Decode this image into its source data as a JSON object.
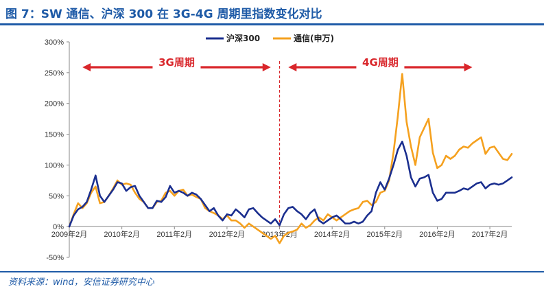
{
  "header": {
    "title": "图 7：SW 通信、沪深 300 在 3G-4G 周期里指数变化对比"
  },
  "footer": {
    "source": "资料来源：wind，安信证券研究中心"
  },
  "colors": {
    "hs300": "#1b2f8f",
    "telecom": "#f5a11f",
    "annotation": "#d9262b",
    "accent": "#1f5ba7"
  },
  "annotations": {
    "period_3g": "3G周期",
    "period_4g": "4G周期"
  },
  "chart_data": {
    "type": "line",
    "title": "",
    "xlabel": "",
    "ylabel": "",
    "ylim": [
      -50,
      300
    ],
    "yticks": [
      "-50%",
      "0%",
      "50%",
      "100%",
      "150%",
      "200%",
      "250%",
      "300%"
    ],
    "xticks": [
      "2009年2月",
      "2010年2月",
      "2011年2月",
      "2012年2月",
      "2013年2月",
      "2014年2月",
      "2015年2月",
      "2016年2月",
      "2017年2月"
    ],
    "x_range": [
      "2009-02",
      "2017-07"
    ],
    "grid": false,
    "legend_position": "top-center",
    "annotations": [
      {
        "label": "3G周期",
        "from": "2009-05",
        "to": "2012-12"
      },
      {
        "label": "4G周期",
        "from": "2013-04",
        "to": "2016-10"
      }
    ],
    "divider_at": "2013-02",
    "series": [
      {
        "name": "沪深300",
        "color": "#1b2f8f",
        "points": [
          [
            "2009-02",
            0
          ],
          [
            "2009-03",
            18
          ],
          [
            "2009-04",
            28
          ],
          [
            "2009-05",
            32
          ],
          [
            "2009-06",
            40
          ],
          [
            "2009-07",
            60
          ],
          [
            "2009-08",
            83
          ],
          [
            "2009-09",
            50
          ],
          [
            "2009-10",
            40
          ],
          [
            "2009-11",
            50
          ],
          [
            "2009-12",
            60
          ],
          [
            "2010-01",
            72
          ],
          [
            "2010-02",
            70
          ],
          [
            "2010-03",
            58
          ],
          [
            "2010-04",
            64
          ],
          [
            "2010-05",
            66
          ],
          [
            "2010-06",
            50
          ],
          [
            "2010-07",
            40
          ],
          [
            "2010-08",
            30
          ],
          [
            "2010-09",
            30
          ],
          [
            "2010-10",
            42
          ],
          [
            "2010-11",
            40
          ],
          [
            "2010-12",
            48
          ],
          [
            "2011-01",
            66
          ],
          [
            "2011-02",
            55
          ],
          [
            "2011-03",
            58
          ],
          [
            "2011-04",
            55
          ],
          [
            "2011-05",
            50
          ],
          [
            "2011-06",
            55
          ],
          [
            "2011-07",
            52
          ],
          [
            "2011-08",
            45
          ],
          [
            "2011-09",
            35
          ],
          [
            "2011-10",
            25
          ],
          [
            "2011-11",
            30
          ],
          [
            "2011-12",
            18
          ],
          [
            "2012-01",
            10
          ],
          [
            "2012-02",
            20
          ],
          [
            "2012-03",
            18
          ],
          [
            "2012-04",
            28
          ],
          [
            "2012-05",
            22
          ],
          [
            "2012-06",
            15
          ],
          [
            "2012-07",
            28
          ],
          [
            "2012-08",
            30
          ],
          [
            "2012-09",
            22
          ],
          [
            "2012-10",
            15
          ],
          [
            "2012-11",
            10
          ],
          [
            "2012-12",
            5
          ],
          [
            "2013-01",
            12
          ],
          [
            "2013-02",
            2
          ],
          [
            "2013-03",
            20
          ],
          [
            "2013-04",
            30
          ],
          [
            "2013-05",
            32
          ],
          [
            "2013-06",
            25
          ],
          [
            "2013-07",
            20
          ],
          [
            "2013-08",
            12
          ],
          [
            "2013-09",
            22
          ],
          [
            "2013-10",
            28
          ],
          [
            "2013-11",
            10
          ],
          [
            "2013-12",
            5
          ],
          [
            "2014-01",
            10
          ],
          [
            "2014-02",
            15
          ],
          [
            "2014-03",
            18
          ],
          [
            "2014-04",
            12
          ],
          [
            "2014-05",
            5
          ],
          [
            "2014-06",
            5
          ],
          [
            "2014-07",
            8
          ],
          [
            "2014-08",
            5
          ],
          [
            "2014-09",
            8
          ],
          [
            "2014-10",
            18
          ],
          [
            "2014-11",
            25
          ],
          [
            "2014-12",
            55
          ],
          [
            "2015-01",
            72
          ],
          [
            "2015-02",
            60
          ],
          [
            "2015-03",
            78
          ],
          [
            "2015-04",
            100
          ],
          [
            "2015-05",
            125
          ],
          [
            "2015-06",
            138
          ],
          [
            "2015-07",
            115
          ],
          [
            "2015-08",
            80
          ],
          [
            "2015-09",
            65
          ],
          [
            "2015-10",
            78
          ],
          [
            "2015-11",
            80
          ],
          [
            "2015-12",
            84
          ],
          [
            "2016-01",
            55
          ],
          [
            "2016-02",
            42
          ],
          [
            "2016-03",
            45
          ],
          [
            "2016-04",
            55
          ],
          [
            "2016-05",
            55
          ],
          [
            "2016-06",
            55
          ],
          [
            "2016-07",
            58
          ],
          [
            "2016-08",
            62
          ],
          [
            "2016-09",
            60
          ],
          [
            "2016-10",
            65
          ],
          [
            "2016-11",
            70
          ],
          [
            "2016-12",
            72
          ],
          [
            "2017-01",
            62
          ],
          [
            "2017-02",
            68
          ],
          [
            "2017-03",
            70
          ],
          [
            "2017-04",
            68
          ],
          [
            "2017-05",
            70
          ],
          [
            "2017-06",
            75
          ],
          [
            "2017-07",
            80
          ]
        ]
      },
      {
        "name": "通信(申万)",
        "color": "#f5a11f",
        "points": [
          [
            "2009-02",
            0
          ],
          [
            "2009-03",
            20
          ],
          [
            "2009-04",
            38
          ],
          [
            "2009-05",
            30
          ],
          [
            "2009-06",
            38
          ],
          [
            "2009-07",
            55
          ],
          [
            "2009-08",
            65
          ],
          [
            "2009-09",
            38
          ],
          [
            "2009-10",
            40
          ],
          [
            "2009-11",
            50
          ],
          [
            "2009-12",
            62
          ],
          [
            "2010-01",
            75
          ],
          [
            "2010-02",
            68
          ],
          [
            "2010-03",
            70
          ],
          [
            "2010-04",
            68
          ],
          [
            "2010-05",
            55
          ],
          [
            "2010-06",
            45
          ],
          [
            "2010-07",
            40
          ],
          [
            "2010-08",
            30
          ],
          [
            "2010-09",
            30
          ],
          [
            "2010-10",
            40
          ],
          [
            "2010-11",
            42
          ],
          [
            "2010-12",
            55
          ],
          [
            "2011-01",
            58
          ],
          [
            "2011-02",
            50
          ],
          [
            "2011-03",
            58
          ],
          [
            "2011-04",
            60
          ],
          [
            "2011-05",
            50
          ],
          [
            "2011-06",
            52
          ],
          [
            "2011-07",
            48
          ],
          [
            "2011-08",
            45
          ],
          [
            "2011-09",
            30
          ],
          [
            "2011-10",
            25
          ],
          [
            "2011-11",
            22
          ],
          [
            "2011-12",
            18
          ],
          [
            "2012-01",
            12
          ],
          [
            "2012-02",
            18
          ],
          [
            "2012-03",
            10
          ],
          [
            "2012-04",
            10
          ],
          [
            "2012-05",
            5
          ],
          [
            "2012-06",
            -2
          ],
          [
            "2012-07",
            5
          ],
          [
            "2012-08",
            0
          ],
          [
            "2012-09",
            -5
          ],
          [
            "2012-10",
            -10
          ],
          [
            "2012-11",
            -15
          ],
          [
            "2012-12",
            -20
          ],
          [
            "2013-01",
            -15
          ],
          [
            "2013-02",
            -27
          ],
          [
            "2013-03",
            -15
          ],
          [
            "2013-04",
            -10
          ],
          [
            "2013-05",
            -8
          ],
          [
            "2013-06",
            -5
          ],
          [
            "2013-07",
            5
          ],
          [
            "2013-08",
            -2
          ],
          [
            "2013-09",
            2
          ],
          [
            "2013-10",
            10
          ],
          [
            "2013-11",
            15
          ],
          [
            "2013-12",
            10
          ],
          [
            "2014-01",
            20
          ],
          [
            "2014-02",
            15
          ],
          [
            "2014-03",
            10
          ],
          [
            "2014-04",
            15
          ],
          [
            "2014-05",
            20
          ],
          [
            "2014-06",
            25
          ],
          [
            "2014-07",
            28
          ],
          [
            "2014-08",
            30
          ],
          [
            "2014-09",
            40
          ],
          [
            "2014-10",
            42
          ],
          [
            "2014-11",
            35
          ],
          [
            "2014-12",
            40
          ],
          [
            "2015-01",
            55
          ],
          [
            "2015-02",
            58
          ],
          [
            "2015-03",
            75
          ],
          [
            "2015-04",
            120
          ],
          [
            "2015-05",
            180
          ],
          [
            "2015-06",
            248
          ],
          [
            "2015-07",
            170
          ],
          [
            "2015-08",
            130
          ],
          [
            "2015-09",
            100
          ],
          [
            "2015-10",
            145
          ],
          [
            "2015-11",
            160
          ],
          [
            "2015-12",
            175
          ],
          [
            "2016-01",
            120
          ],
          [
            "2016-02",
            95
          ],
          [
            "2016-03",
            100
          ],
          [
            "2016-04",
            115
          ],
          [
            "2016-05",
            110
          ],
          [
            "2016-06",
            115
          ],
          [
            "2016-07",
            125
          ],
          [
            "2016-08",
            130
          ],
          [
            "2016-09",
            128
          ],
          [
            "2016-10",
            135
          ],
          [
            "2016-11",
            140
          ],
          [
            "2016-12",
            145
          ],
          [
            "2017-01",
            118
          ],
          [
            "2017-02",
            128
          ],
          [
            "2017-03",
            130
          ],
          [
            "2017-04",
            120
          ],
          [
            "2017-05",
            110
          ],
          [
            "2017-06",
            108
          ],
          [
            "2017-07",
            118
          ]
        ]
      }
    ]
  }
}
